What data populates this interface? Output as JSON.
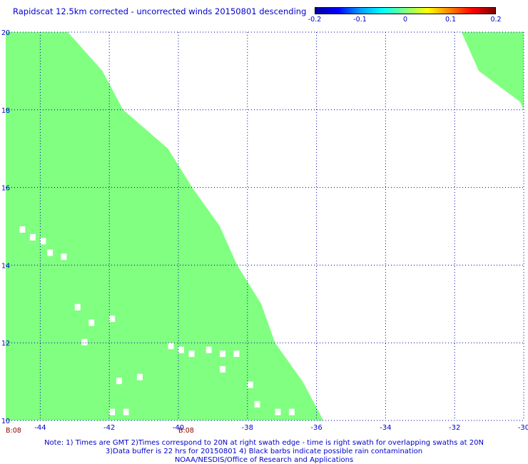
{
  "header": {
    "title": "Rapidscat 12.5km corrected - uncorrected winds 20150801 descending"
  },
  "colorbar": {
    "ticks": [
      "-0.2",
      "-0.1",
      "0",
      "0.1",
      "0.2"
    ],
    "tick_values": [
      -0.2,
      -0.1,
      0,
      0.1,
      0.2
    ],
    "stops": [
      "#0000a0",
      "#0000ff",
      "#00a0ff",
      "#00ffff",
      "#80ff80",
      "#ffff00",
      "#ff8000",
      "#ff0000",
      "#800000"
    ]
  },
  "map": {
    "fill_color": "#80ff80",
    "grid_color": "#0000aa",
    "lon_range": [
      -45,
      -30
    ],
    "lat_range": [
      10,
      20
    ],
    "x_ticks": [
      {
        "value": -44,
        "label": "-44"
      },
      {
        "value": -42,
        "label": "-42"
      },
      {
        "value": -40,
        "label": "-40"
      },
      {
        "value": -38,
        "label": "-38"
      },
      {
        "value": -36,
        "label": "-36"
      },
      {
        "value": -34,
        "label": "-34"
      },
      {
        "value": -32,
        "label": "-32"
      },
      {
        "value": -30,
        "label": "-30"
      }
    ],
    "y_ticks": [
      {
        "value": 20,
        "label": "20"
      },
      {
        "value": 18,
        "label": "18"
      },
      {
        "value": 16,
        "label": "16"
      },
      {
        "value": 14,
        "label": "14"
      },
      {
        "value": 12,
        "label": "12"
      },
      {
        "value": 10,
        "label": "10"
      }
    ],
    "swath_west": {
      "lat_lon_edge": [
        [
          20,
          -43.2
        ],
        [
          19.0,
          -42.2
        ],
        [
          18.0,
          -41.6
        ],
        [
          17.0,
          -40.3
        ],
        [
          16.0,
          -39.6
        ],
        [
          15.0,
          -38.8
        ],
        [
          14.0,
          -38.3
        ],
        [
          13.0,
          -37.6
        ],
        [
          12.0,
          -37.2
        ],
        [
          11.0,
          -36.4
        ],
        [
          10.0,
          -35.8
        ]
      ]
    },
    "swath_east": {
      "lat_lon_edge": [
        [
          20,
          -31.8
        ],
        [
          19.0,
          -31.3
        ],
        [
          18.2,
          -30.1
        ],
        [
          18.0,
          -30.0
        ]
      ]
    }
  },
  "time_labels": [
    {
      "text": "B:08",
      "lon": -45
    },
    {
      "text": "B:08",
      "lon": -40
    }
  ],
  "notes": [
    "Note: 1) Times are GMT 2)Times correspond to 20N at right swath edge - time is right swath for overlapping swaths at 20N",
    "3)Data buffer is 22 hrs for 20150801 4) Black barbs indicate possible rain contamination",
    "NOAA/NESDIS/Office of Research and Applications"
  ]
}
